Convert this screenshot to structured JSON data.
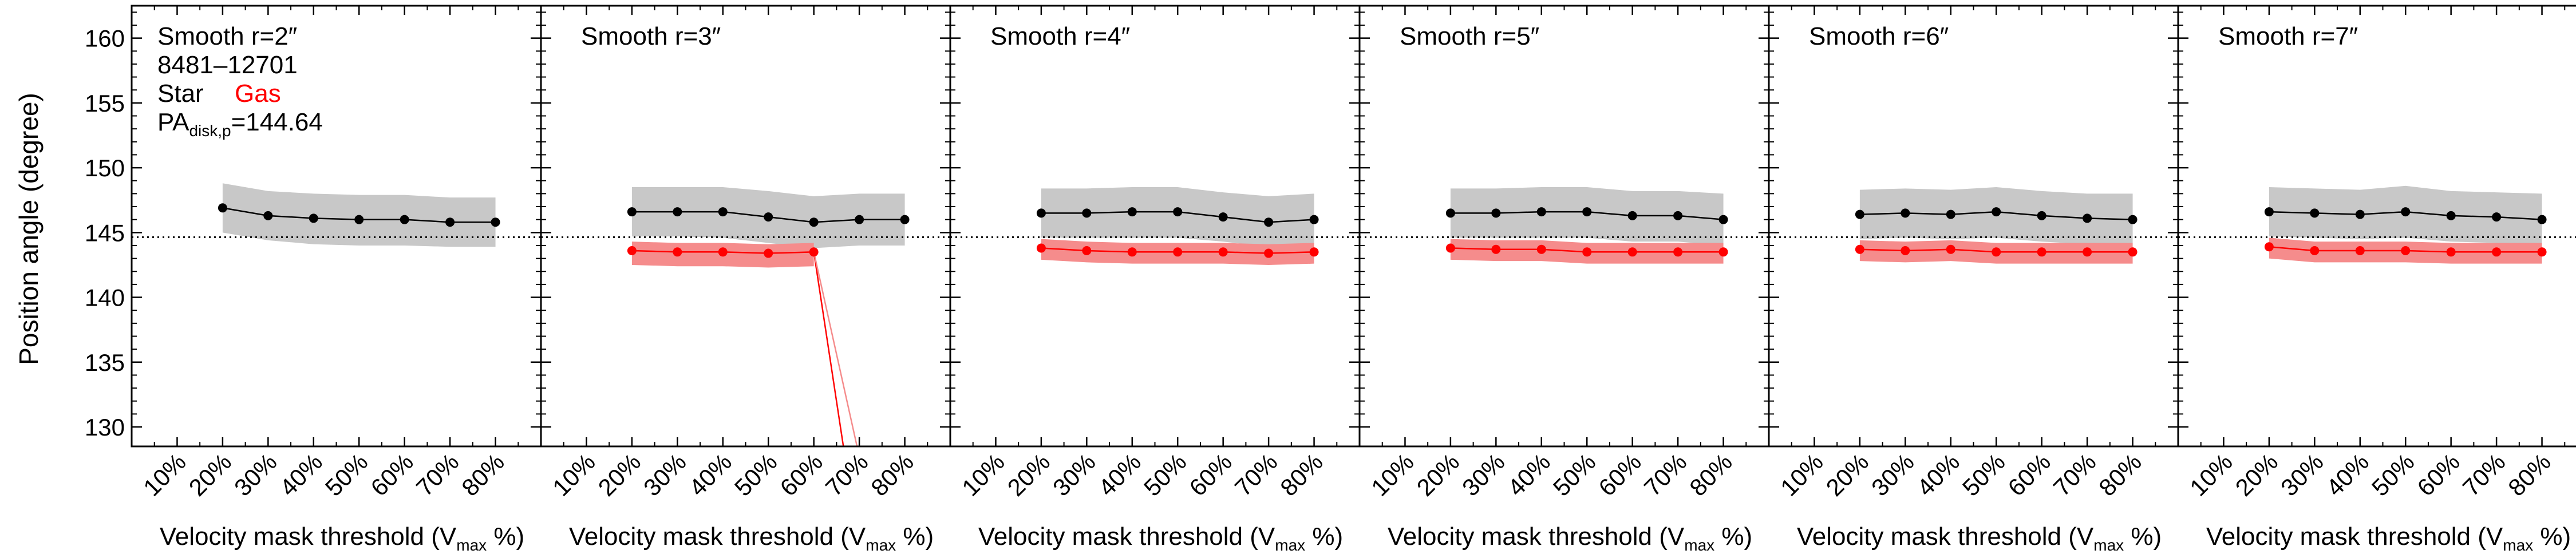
{
  "figure": {
    "ylabel": "Position angle (degree)",
    "xlabel_main": "Velocity mask threshold (V",
    "xlabel_sub": "max",
    "xlabel_end": " %)",
    "legend": {
      "galaxy_id": "8481–12701",
      "star_label": "Star",
      "gas_label": "Gas",
      "pa_label_main": "PA",
      "pa_label_sub": "disk,p",
      "pa_value_text": "=144.64"
    }
  },
  "chart_data": {
    "type": "line",
    "xlim": [
      0,
      90
    ],
    "ylim": [
      128.5,
      162.5
    ],
    "x_ticks": [
      10,
      20,
      30,
      40,
      50,
      60,
      70,
      80
    ],
    "x_tick_labels": [
      "10%",
      "20%",
      "30%",
      "40%",
      "50%",
      "60%",
      "70%",
      "80%"
    ],
    "y_ticks": [
      130,
      135,
      140,
      145,
      150,
      155,
      160
    ],
    "y_tick_labels": [
      "130",
      "135",
      "140",
      "145",
      "150",
      "155",
      "160"
    ],
    "reference_line": {
      "y": 144.64,
      "style": "dotted"
    },
    "colors": {
      "star": "#000000",
      "star_band": "#c8c8c8",
      "gas": "#ff0000",
      "gas_band": "#f58c8c"
    },
    "panels": [
      {
        "title": "Smooth r=2″",
        "x": [
          20,
          30,
          40,
          50,
          60,
          70,
          80
        ],
        "star": [
          146.9,
          146.3,
          146.1,
          146.0,
          146.0,
          145.8,
          145.8
        ],
        "star_upper": [
          148.8,
          148.2,
          148.0,
          147.9,
          147.9,
          147.7,
          147.7
        ],
        "star_lower": [
          145.0,
          144.4,
          144.1,
          144.0,
          144.0,
          143.9,
          143.9
        ],
        "gas": [],
        "gas_upper": [],
        "gas_lower": []
      },
      {
        "title": "Smooth r=3″",
        "x": [
          20,
          30,
          40,
          50,
          60,
          70,
          80
        ],
        "star": [
          146.6,
          146.6,
          146.6,
          146.2,
          145.8,
          146.0,
          146.0
        ],
        "star_upper": [
          148.5,
          148.5,
          148.5,
          148.2,
          147.8,
          148.0,
          148.0
        ],
        "star_lower": [
          144.7,
          144.7,
          144.6,
          144.2,
          143.8,
          144.0,
          144.0
        ],
        "gas": [
          143.6,
          143.5,
          143.5,
          143.4,
          143.5
        ],
        "gas_upper": [
          144.3,
          144.2,
          144.2,
          144.1,
          144.2
        ],
        "gas_lower": [
          142.5,
          142.4,
          142.4,
          142.3,
          142.4
        ],
        "gas_outlier": {
          "from_x": 60,
          "to_x": 66.5,
          "value": 128.5
        }
      },
      {
        "title": "Smooth r=4″",
        "x": [
          20,
          30,
          40,
          50,
          60,
          70,
          80
        ],
        "star": [
          146.5,
          146.5,
          146.6,
          146.6,
          146.2,
          145.8,
          146.0
        ],
        "star_upper": [
          148.4,
          148.4,
          148.5,
          148.5,
          148.1,
          147.8,
          148.0
        ],
        "star_lower": [
          144.6,
          144.6,
          144.6,
          144.6,
          144.3,
          143.9,
          144.0
        ],
        "gas": [
          143.8,
          143.6,
          143.5,
          143.5,
          143.5,
          143.4,
          143.5
        ],
        "gas_upper": [
          144.5,
          144.3,
          144.2,
          144.2,
          144.2,
          144.1,
          144.2
        ],
        "gas_lower": [
          142.9,
          142.7,
          142.6,
          142.6,
          142.6,
          142.5,
          142.6
        ]
      },
      {
        "title": "Smooth r=5″",
        "x": [
          20,
          30,
          40,
          50,
          60,
          70,
          80
        ],
        "star": [
          146.5,
          146.5,
          146.6,
          146.6,
          146.3,
          146.3,
          146.0
        ],
        "star_upper": [
          148.4,
          148.4,
          148.5,
          148.5,
          148.2,
          148.2,
          148.0
        ],
        "star_lower": [
          144.6,
          144.6,
          144.6,
          144.6,
          144.3,
          144.3,
          144.0
        ],
        "gas": [
          143.8,
          143.7,
          143.7,
          143.5,
          143.5,
          143.5,
          143.5
        ],
        "gas_upper": [
          144.5,
          144.4,
          144.4,
          144.2,
          144.2,
          144.2,
          144.2
        ],
        "gas_lower": [
          142.9,
          142.8,
          142.8,
          142.6,
          142.6,
          142.6,
          142.6
        ]
      },
      {
        "title": "Smooth r=6″",
        "x": [
          20,
          30,
          40,
          50,
          60,
          70,
          80
        ],
        "star": [
          146.4,
          146.5,
          146.4,
          146.6,
          146.3,
          146.1,
          146.0
        ],
        "star_upper": [
          148.3,
          148.4,
          148.3,
          148.5,
          148.2,
          148.0,
          148.0
        ],
        "star_lower": [
          144.5,
          144.6,
          144.5,
          144.6,
          144.3,
          144.1,
          144.0
        ],
        "gas": [
          143.7,
          143.6,
          143.7,
          143.5,
          143.5,
          143.5,
          143.5
        ],
        "gas_upper": [
          144.4,
          144.3,
          144.4,
          144.2,
          144.2,
          144.2,
          144.2
        ],
        "gas_lower": [
          142.8,
          142.7,
          142.8,
          142.6,
          142.6,
          142.6,
          142.6
        ]
      },
      {
        "title": "Smooth r=7″",
        "x": [
          20,
          30,
          40,
          50,
          60,
          70,
          80
        ],
        "star": [
          146.6,
          146.5,
          146.4,
          146.6,
          146.3,
          146.2,
          146.0
        ],
        "star_upper": [
          148.5,
          148.4,
          148.3,
          148.6,
          148.2,
          148.1,
          148.0
        ],
        "star_lower": [
          144.7,
          144.6,
          144.5,
          144.6,
          144.3,
          144.2,
          144.0
        ],
        "gas": [
          143.9,
          143.6,
          143.6,
          143.6,
          143.5,
          143.5,
          143.5
        ],
        "gas_upper": [
          144.6,
          144.3,
          144.3,
          144.3,
          144.2,
          144.2,
          144.2
        ],
        "gas_lower": [
          143.0,
          142.7,
          142.7,
          142.7,
          142.6,
          142.6,
          142.6
        ]
      }
    ]
  }
}
